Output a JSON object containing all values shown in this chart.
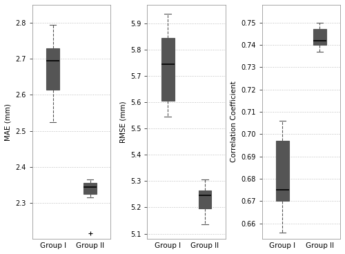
{
  "subplot1": {
    "ylabel": "MAE (mm)",
    "ylim": [
      2.2,
      2.85
    ],
    "yticks": [
      2.3,
      2.4,
      2.5,
      2.6,
      2.7,
      2.8
    ],
    "group1": {
      "whislo": 2.525,
      "q1": 2.615,
      "med": 2.695,
      "q3": 2.73,
      "whishi": 2.795,
      "fliers": []
    },
    "group2": {
      "whislo": 2.315,
      "q1": 2.325,
      "med": 2.345,
      "q3": 2.355,
      "whishi": 2.365,
      "fliers": [
        2.215
      ]
    }
  },
  "subplot2": {
    "ylabel": "RMSE (mm)",
    "ylim": [
      5.08,
      5.97
    ],
    "yticks": [
      5.1,
      5.2,
      5.3,
      5.4,
      5.5,
      5.6,
      5.7,
      5.8,
      5.9
    ],
    "group1": {
      "whislo": 5.545,
      "q1": 5.605,
      "med": 5.745,
      "q3": 5.845,
      "whishi": 5.935,
      "fliers": []
    },
    "group2": {
      "whislo": 5.135,
      "q1": 5.195,
      "med": 5.245,
      "q3": 5.265,
      "whishi": 5.305,
      "fliers": []
    }
  },
  "subplot3": {
    "ylabel": "Correlation Coefficient",
    "ylim": [
      0.653,
      0.758
    ],
    "yticks": [
      0.66,
      0.67,
      0.68,
      0.69,
      0.7,
      0.71,
      0.72,
      0.73,
      0.74,
      0.75
    ],
    "group1": {
      "whislo": 0.656,
      "q1": 0.67,
      "med": 0.675,
      "q3": 0.697,
      "whishi": 0.706,
      "fliers": []
    },
    "group2": {
      "whislo": 0.737,
      "q1": 0.74,
      "med": 0.742,
      "q3": 0.747,
      "whishi": 0.75,
      "fliers": []
    }
  },
  "xtick_labels": [
    "Group I",
    "Group II"
  ],
  "box_facecolor": "white",
  "box_edgecolor": "#555555",
  "median_color": "#000000",
  "whisker_color": "#555555",
  "cap_color": "#555555",
  "flier_color": "#000000",
  "grid_color": "#bbbbbb",
  "background_color": "#ffffff",
  "fig_background": "#ffffff"
}
